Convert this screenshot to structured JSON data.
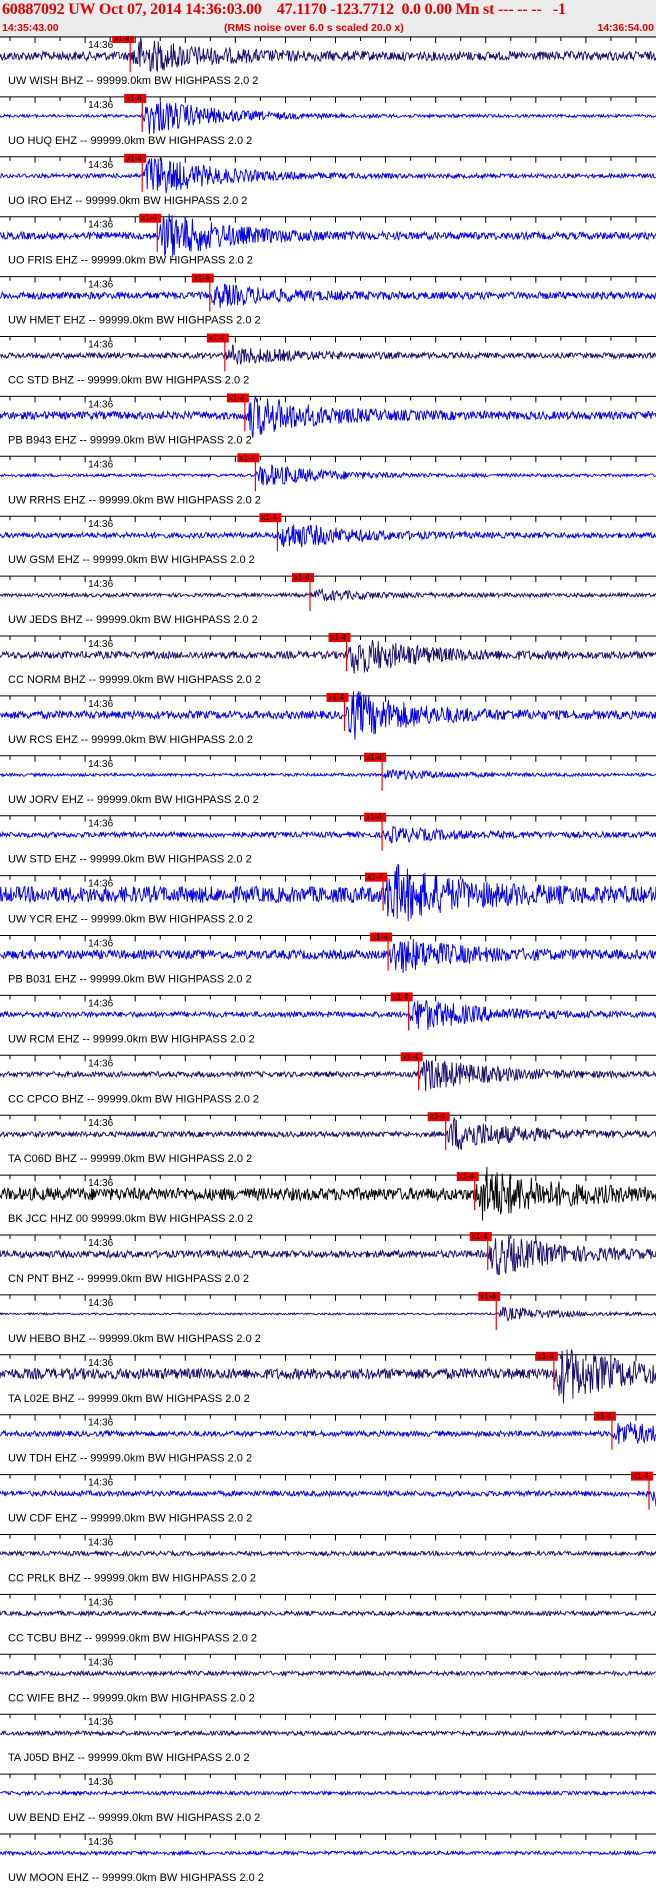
{
  "header": {
    "title": "60887092 UW Oct 07, 2014 14:36:03.00    47.1170 -123.7712  0.0 0.00 Mn st --- -- --   -1",
    "time_start": "14:35:43.00",
    "rms_note": "(RMS noise over 6.0 s scaled 20.0 x)",
    "time_end": "14:36:54.00"
  },
  "chart_data": {
    "type": "seismogram",
    "tick_label": "14:36",
    "pick_label": "x1-4",
    "traces": [
      {
        "label": "UW WISH BHZ -- 99999.0km BW  HIGHPASS  2.0  2",
        "color": "#1a0a6e",
        "pick_s": 26.0,
        "amp": 0.25,
        "burst": 1.0
      },
      {
        "label": "UO HUQ EHZ -- 99999.0km BW  HIGHPASS  2.0  2",
        "color": "#0000ee",
        "pick_s": 28.4,
        "amp": 0.08,
        "burst": 1.2
      },
      {
        "label": "UO IRO EHZ -- 99999.0km BW  HIGHPASS  2.0  2",
        "color": "#0000ee",
        "pick_s": 28.4,
        "amp": 0.12,
        "burst": 1.3
      },
      {
        "label": "UO FRIS EHZ -- 99999.0km BW  HIGHPASS  2.0  2",
        "color": "#0000ee",
        "pick_s": 31.4,
        "amp": 0.2,
        "burst": 1.4
      },
      {
        "label": "UW HMET EHZ -- 99999.0km BW  HIGHPASS  2.0  2",
        "color": "#0000ee",
        "pick_s": 41.9,
        "amp": 0.2,
        "burst": 0.6
      },
      {
        "label": "CC STD BHZ -- 99999.0km BW  HIGHPASS  2.0  2",
        "color": "#1a0a6e",
        "pick_s": 44.9,
        "amp": 0.15,
        "burst": 0.5
      },
      {
        "label": "PB B943 EHZ -- 99999.0km BW  HIGHPASS  2.0  2",
        "color": "#0000ee",
        "pick_s": 48.9,
        "amp": 0.22,
        "burst": 1.2
      },
      {
        "label": "UW RRHS EHZ -- 99999.0km BW  HIGHPASS  2.0  2",
        "color": "#0000ee",
        "pick_s": 51.0,
        "amp": 0.08,
        "burst": 0.7
      },
      {
        "label": "UW GSM EHZ -- 99999.0km BW  HIGHPASS  2.0  2",
        "color": "#0000ee",
        "pick_s": 55.4,
        "amp": 0.15,
        "burst": 0.8
      },
      {
        "label": "UW JEDS BHZ -- 99999.0km BW  HIGHPASS  2.0  2",
        "color": "#1a0a6e",
        "pick_s": 61.9,
        "amp": 0.1,
        "burst": 0.3
      },
      {
        "label": "CC NORM BHZ -- 99999.0km BW  HIGHPASS  2.0  2",
        "color": "#1a0a6e",
        "pick_s": 69.2,
        "amp": 0.2,
        "burst": 1.1
      },
      {
        "label": "UW RCS EHZ -- 99999.0km BW  HIGHPASS  2.0  2",
        "color": "#0000ee",
        "pick_s": 68.8,
        "amp": 0.22,
        "burst": 1.4
      },
      {
        "label": "UW JORV EHZ -- 99999.0km BW  HIGHPASS  2.0  2",
        "color": "#0000ee",
        "pick_s": 76.3,
        "amp": 0.08,
        "burst": 0.3
      },
      {
        "label": "UW STD EHZ -- 99999.0km BW  HIGHPASS  2.0  2",
        "color": "#0000ee",
        "pick_s": 76.3,
        "amp": 0.15,
        "burst": 0.4
      },
      {
        "label": "UW YCR EHZ -- 99999.0km BW  HIGHPASS  2.0  2",
        "color": "#0000ee",
        "pick_s": 76.5,
        "amp": 0.45,
        "burst": 1.6
      },
      {
        "label": "PB B031 EHZ -- 99999.0km BW  HIGHPASS  2.0  2",
        "color": "#0000ee",
        "pick_s": 77.5,
        "amp": 0.25,
        "burst": 1.0
      },
      {
        "label": "UW RCM EHZ -- 99999.0km BW  HIGHPASS  2.0  2",
        "color": "#0000ee",
        "pick_s": 81.6,
        "amp": 0.15,
        "burst": 1.0
      },
      {
        "label": "CC CPCO BHZ -- 99999.0km BW  HIGHPASS  2.0  2",
        "color": "#1a0a6e",
        "pick_s": 83.6,
        "amp": 0.15,
        "burst": 1.0
      },
      {
        "label": "TA C06D BHZ -- 99999.0km BW  HIGHPASS  2.0  2",
        "color": "#1a0a6e",
        "pick_s": 89.0,
        "amp": 0.15,
        "burst": 1.0
      },
      {
        "label": "BK JCC HHZ 00 99999.0km BW  HIGHPASS  2.0  2",
        "color": "#000000",
        "pick_s": 94.8,
        "amp": 0.35,
        "burst": 1.5
      },
      {
        "label": "CN PNT BHZ -- 99999.0km BW  HIGHPASS  2.0  2",
        "color": "#1a0a6e",
        "pick_s": 97.4,
        "amp": 0.2,
        "burst": 1.2
      },
      {
        "label": "UW HEBO BHZ -- 99999.0km BW  HIGHPASS  2.0  2",
        "color": "#1a0a6e",
        "pick_s": 99.1,
        "amp": 0.05,
        "burst": 0.4
      },
      {
        "label": "TA L02E BHZ -- 99999.0km BW  HIGHPASS  2.0  2",
        "color": "#1a0a6e",
        "pick_s": 110.6,
        "amp": 0.3,
        "burst": 1.6
      },
      {
        "label": "UW TDH EHZ -- 99999.0km BW  HIGHPASS  2.0  2",
        "color": "#0000ee",
        "pick_s": 122.2,
        "amp": 0.15,
        "burst": 0.7
      },
      {
        "label": "UW CDF EHZ -- 99999.0km BW  HIGHPASS  2.0  2",
        "color": "#0000ee",
        "pick_s": 129.6,
        "amp": 0.15,
        "burst": 0.7
      },
      {
        "label": "CC PRLK BHZ -- 99999.0km BW  HIGHPASS  2.0  2",
        "color": "#1a0a6e",
        "pick_s": null,
        "amp": 0.12,
        "burst": 0
      },
      {
        "label": "CC TCBU BHZ -- 99999.0km BW  HIGHPASS  2.0  2",
        "color": "#1a0a6e",
        "pick_s": null,
        "amp": 0.12,
        "burst": 0
      },
      {
        "label": "CC WIFE BHZ -- 99999.0km BW  HIGHPASS  2.0  2",
        "color": "#1a0a6e",
        "pick_s": null,
        "amp": 0.12,
        "burst": 0
      },
      {
        "label": "TA J05D BHZ -- 99999.0km BW  HIGHPASS  2.0  2",
        "color": "#1a0a6e",
        "pick_s": null,
        "amp": 0.12,
        "burst": 0
      },
      {
        "label": "UW BEND EHZ -- 99999.0km BW  HIGHPASS  2.0  2",
        "color": "#0000ee",
        "pick_s": null,
        "amp": 0.1,
        "burst": 0
      },
      {
        "label": "UW MOON EHZ -- 99999.0km BW  HIGHPASS  2.0  2",
        "color": "#0000ee",
        "pick_s": null,
        "amp": 0.1,
        "burst": 0
      }
    ],
    "xlim_s": [
      0,
      131
    ],
    "x_tick_major_every_s": 10,
    "x_tick_minor_every_s": 5,
    "pick_color": "#ee0000",
    "grid": false
  }
}
